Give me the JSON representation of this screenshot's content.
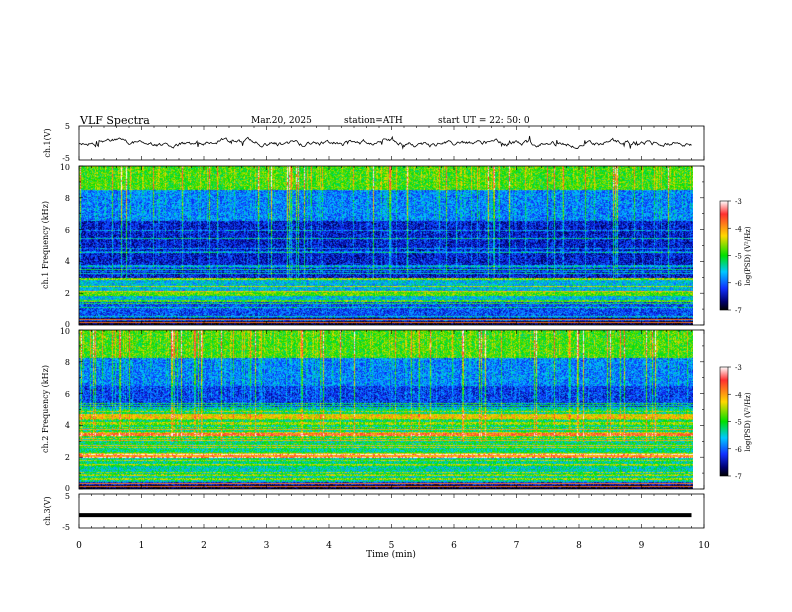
{
  "header": {
    "title": "VLF Spectra",
    "date": "Mar.20, 2025",
    "station": "station=ATH",
    "start": "start UT =  22: 50: 0"
  },
  "colorbar": {
    "label": "log(PSD) (V²/Hz)",
    "ticks": [
      "-3",
      "-4",
      "-5",
      "-6",
      "-7"
    ],
    "colors": [
      "#ffffff",
      "#ff3030",
      "#ffd800",
      "#00e000",
      "#00c8ff",
      "#1030ff",
      "#000070",
      "#000000"
    ]
  },
  "chart_data": [
    {
      "type": "line",
      "panel": "ch1-waveform",
      "ylabel": "ch.1(V)",
      "yticks": [
        "5",
        "-5"
      ],
      "ylim": [
        -5,
        5
      ],
      "xlim": [
        0,
        10
      ],
      "series": [
        {
          "values_note": "noisy trace centered near 0 V, amplitude about ±1 V, ending at 9.8 min"
        }
      ]
    },
    {
      "type": "heatmap",
      "panel": "ch1-spectrogram",
      "ylabel": "ch.1 Frequency (kHz)",
      "yticks": [
        "0",
        "2",
        "4",
        "6",
        "8",
        "10"
      ],
      "ylim": [
        0,
        10
      ],
      "xlim": [
        0,
        9.8
      ],
      "zrange": [
        -7,
        -3
      ]
    },
    {
      "type": "heatmap",
      "panel": "ch2-spectrogram",
      "ylabel": "ch.2 Frequency (kHz)",
      "yticks": [
        "0",
        "2",
        "4",
        "6",
        "8",
        "10"
      ],
      "ylim": [
        0,
        10
      ],
      "xlim": [
        0,
        9.8
      ],
      "zrange": [
        -7,
        -3
      ]
    },
    {
      "type": "line",
      "panel": "ch3-waveform",
      "ylabel": "ch.3(V)",
      "yticks": [
        "5",
        "-5"
      ],
      "ylim": [
        -5,
        5
      ],
      "xlim": [
        0,
        10
      ],
      "series": [
        {
          "values_note": "flat trace at about -1 V, ending at 9.8 min"
        }
      ]
    }
  ],
  "xaxis": {
    "label": "Time (min)",
    "ticks": [
      "0",
      "1",
      "2",
      "3",
      "4",
      "5",
      "6",
      "7",
      "8",
      "9",
      "10"
    ]
  }
}
